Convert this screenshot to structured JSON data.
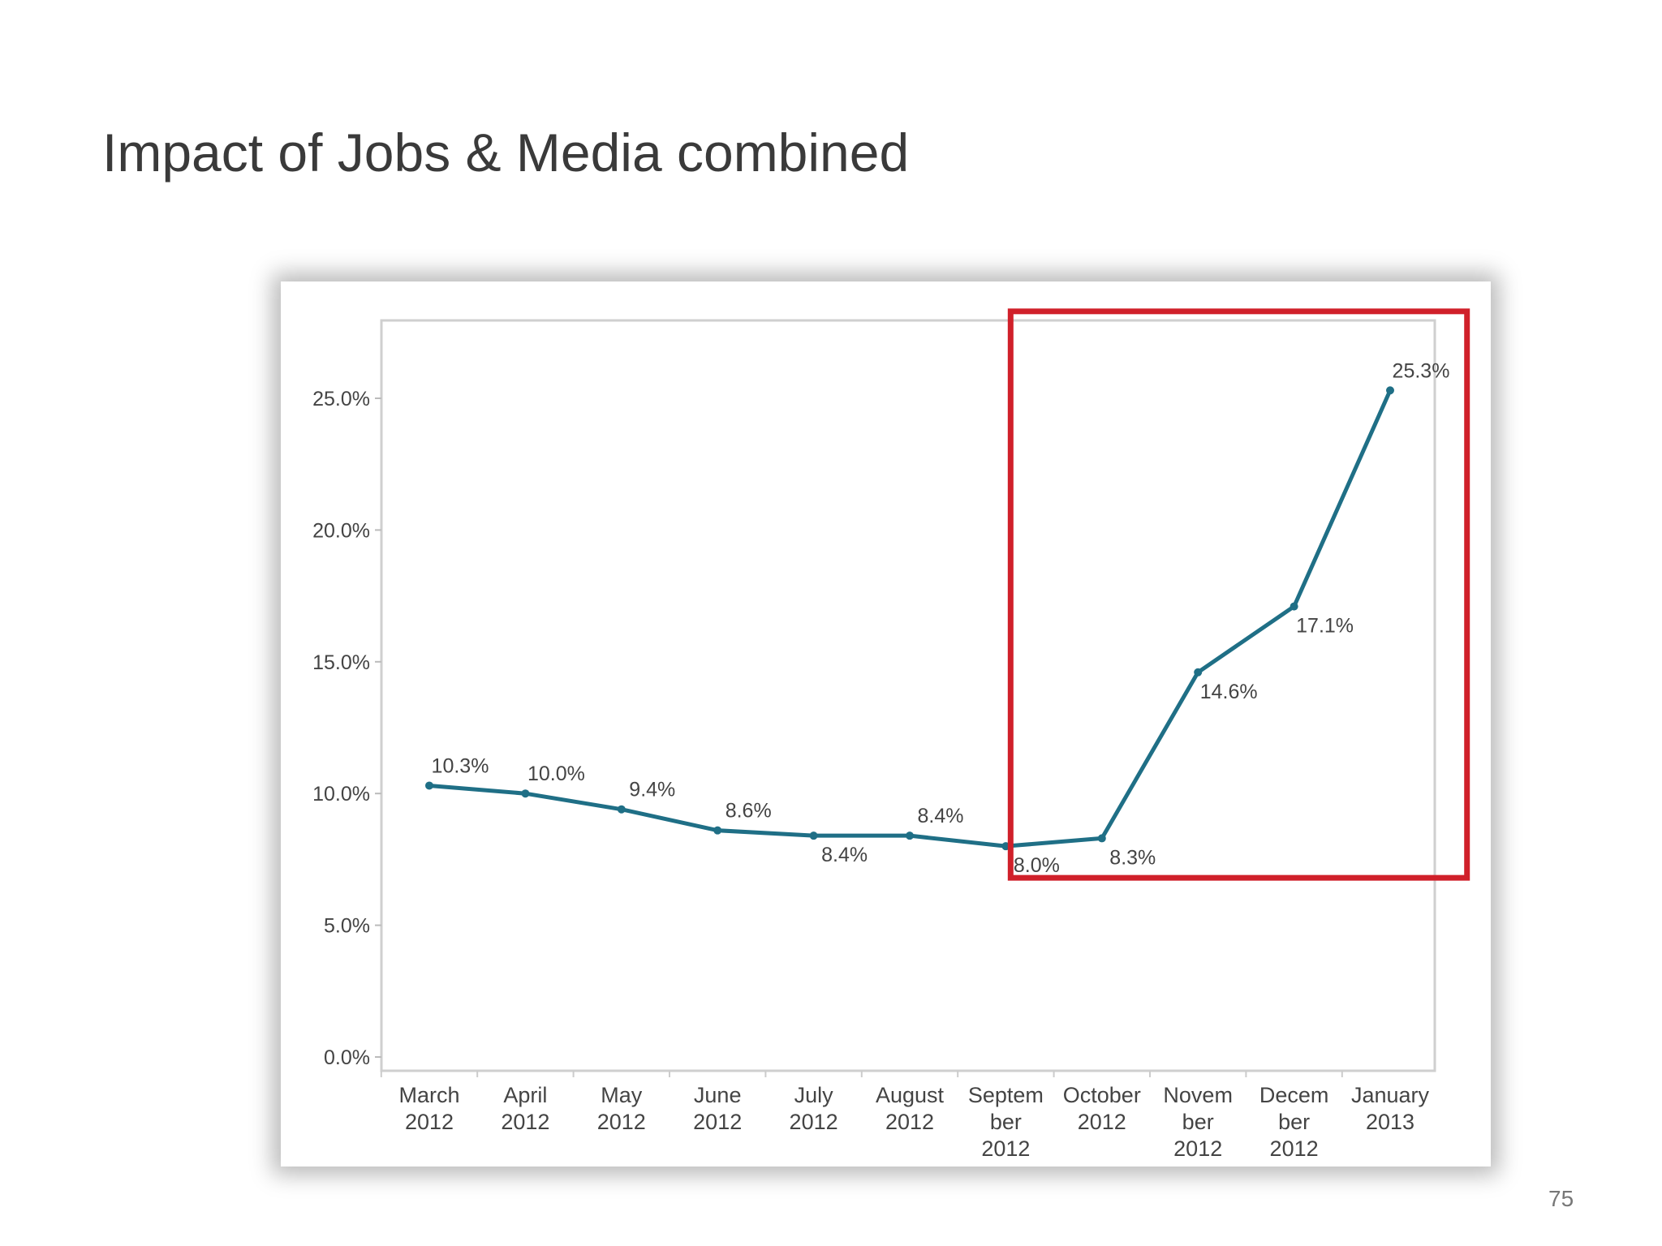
{
  "slide": {
    "title": "Impact of Jobs & Media combined",
    "page_number": "75"
  },
  "colors": {
    "line": "#1f6f86",
    "highlight_box": "#d0202a",
    "axis_text": "#444444",
    "frame_border": "#cfcfcf"
  },
  "chart_data": {
    "type": "line",
    "title": "",
    "xlabel": "",
    "ylabel": "",
    "categories": [
      [
        "March",
        "2012"
      ],
      [
        "April",
        "2012"
      ],
      [
        "May",
        "2012"
      ],
      [
        "June",
        "2012"
      ],
      [
        "July",
        "2012"
      ],
      [
        "August",
        "2012"
      ],
      [
        "Septem",
        "ber",
        "2012"
      ],
      [
        "October",
        "2012"
      ],
      [
        "Novem",
        "ber",
        "2012"
      ],
      [
        "Decem",
        "ber",
        "2012"
      ],
      [
        "January",
        "2013"
      ]
    ],
    "series": [
      {
        "values": [
          10.3,
          10.0,
          9.4,
          8.6,
          8.4,
          8.4,
          8.0,
          8.3,
          14.6,
          17.1,
          25.3
        ]
      }
    ],
    "data_labels": [
      "10.3%",
      "10.0%",
      "9.4%",
      "8.6%",
      "8.4%",
      "8.4%",
      "8.0%",
      "8.3%",
      "14.6%",
      "17.1%",
      "25.3%"
    ],
    "data_label_position": [
      "above",
      "above",
      "above",
      "above",
      "below",
      "above",
      "below",
      "below",
      "below",
      "below",
      "above"
    ],
    "y_ticks": [
      0,
      5,
      10,
      15,
      20,
      25
    ],
    "y_tick_labels": [
      "0.0%",
      "5.0%",
      "10.0%",
      "15.0%",
      "20.0%",
      "25.0%"
    ],
    "ylim": [
      0,
      27.5
    ],
    "grid": false,
    "legend": "none",
    "highlight": {
      "from_category": 6.05,
      "to_category": 10.8,
      "from_value": 6.8,
      "to_value": 28.3,
      "label": ""
    }
  }
}
